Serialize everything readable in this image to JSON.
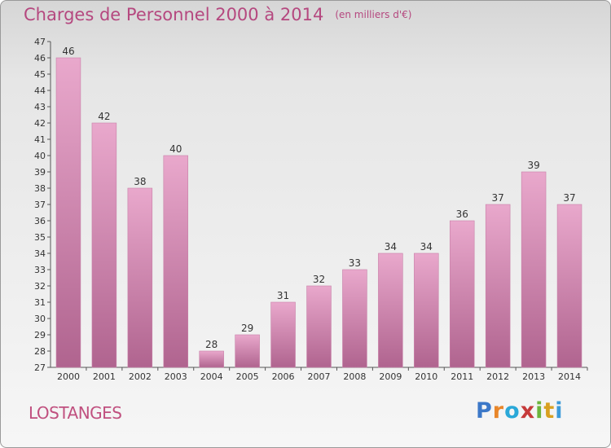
{
  "header": {
    "title": "Charges de Personnel 2000 à 2014",
    "unit_note": "(en milliers d'€)"
  },
  "footer": {
    "commune": "LOSTANGES",
    "brand": "Proxiti",
    "brand_letters": [
      {
        "char": "P",
        "color": "#3c78c8"
      },
      {
        "char": "r",
        "color": "#e8862a"
      },
      {
        "char": "o",
        "color": "#2aa8d8"
      },
      {
        "char": "x",
        "color": "#c63a3a"
      },
      {
        "char": "i",
        "color": "#6cb43c"
      },
      {
        "char": "t",
        "color": "#d8a020"
      },
      {
        "char": "i",
        "color": "#3c9ad8"
      }
    ]
  },
  "colors": {
    "bar_top": "#e9a8cc",
    "bar_bottom": "#b0648f",
    "title": "#b5487f",
    "axis": "#555555"
  },
  "chart_data": {
    "type": "bar",
    "categories": [
      "2000",
      "2001",
      "2002",
      "2003",
      "2004",
      "2005",
      "2006",
      "2007",
      "2008",
      "2009",
      "2010",
      "2011",
      "2012",
      "2013",
      "2014"
    ],
    "values": [
      46,
      42,
      38,
      40,
      28,
      29,
      31,
      32,
      33,
      34,
      34,
      36,
      37,
      39,
      37
    ],
    "ylim": [
      27,
      47
    ],
    "ytick_step": 1,
    "grid": false,
    "legend": "none",
    "data_labels": true,
    "xlabel": "",
    "ylabel": ""
  }
}
